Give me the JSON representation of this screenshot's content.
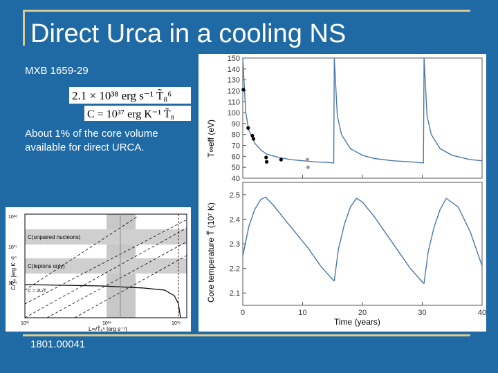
{
  "slide": {
    "title": "Direct Urca in a cooling NS",
    "source_name": "MXB 1659-29",
    "note": "About 1% of the core volume available for direct URCA.",
    "reference": "1801.00041"
  },
  "equations": {
    "luminosity": "2.1 × 10³⁸ erg s⁻¹ T̃₈⁶",
    "heat_capacity": "C = 10³⁷ erg K⁻¹ T̃₈"
  },
  "colors": {
    "background": "#1f6aa5",
    "accent": "#d9c98a",
    "curve": "#4a78a8"
  },
  "right_figure": {
    "top_panel": {
      "ylabel": "T∞eff (eV)",
      "y_ticks": [
        "150",
        "140",
        "130",
        "120",
        "110",
        "100",
        "90",
        "80",
        "70",
        "60",
        "50",
        "40"
      ],
      "ylim": [
        40,
        150
      ]
    },
    "bottom_panel": {
      "ylabel": "Core temperature T̃ (10⁷ K)",
      "y_ticks": [
        "2.5",
        "2.4",
        "2.3",
        "2.2",
        "2.1"
      ],
      "ylim": [
        2.05,
        2.55
      ]
    },
    "xlabel": "Time (years)",
    "x_ticks": [
      "0",
      "10",
      "20",
      "30",
      "40"
    ],
    "xlim": [
      0,
      40
    ]
  },
  "chart_data": [
    {
      "type": "scatter",
      "x": [
        0.1,
        0.9,
        1.6,
        1.8,
        3.9,
        4.0,
        6.4,
        10.8,
        10.9
      ],
      "y": [
        121,
        86,
        79,
        76,
        59,
        55,
        57,
        57,
        50
      ],
      "xlim": [
        0,
        40
      ],
      "ylim": [
        40,
        150
      ],
      "ylabel": "T∞eff (eV)"
    },
    {
      "type": "line",
      "x": [
        0,
        0.5,
        1,
        2,
        3,
        4,
        6,
        8,
        10,
        12,
        14,
        15.2,
        15.3,
        15.8,
        16.5,
        18,
        20,
        22,
        25,
        28,
        30.2,
        30.3,
        30.8,
        31.5,
        33,
        35,
        38,
        40
      ],
      "y": [
        150,
        100,
        84,
        72,
        66,
        62,
        59,
        57,
        56,
        55,
        54.5,
        54,
        150,
        97,
        80,
        67,
        61,
        58,
        56,
        55,
        54,
        150,
        97,
        80,
        67,
        61,
        57,
        56
      ],
      "xlim": [
        0,
        40
      ],
      "ylim": [
        40,
        150
      ]
    },
    {
      "type": "line",
      "x": [
        0,
        1,
        2,
        3,
        3.8,
        5,
        7,
        9,
        11,
        13,
        15.2,
        15.3,
        16,
        17,
        18,
        19,
        20,
        22,
        24,
        26,
        28,
        30.2,
        30.3,
        31,
        32,
        33,
        34,
        36,
        38,
        40
      ],
      "y": [
        2.25,
        2.37,
        2.44,
        2.48,
        2.49,
        2.46,
        2.4,
        2.34,
        2.28,
        2.21,
        2.15,
        2.15,
        2.28,
        2.38,
        2.45,
        2.485,
        2.47,
        2.41,
        2.34,
        2.27,
        2.2,
        2.14,
        2.14,
        2.27,
        2.37,
        2.44,
        2.485,
        2.45,
        2.35,
        2.21
      ],
      "xlim": [
        0,
        40
      ],
      "ylim": [
        2.05,
        2.55
      ],
      "xlabel": "Time (years)",
      "ylabel": "Core temperature T̃ (10⁷ K)"
    }
  ],
  "left_figure": {
    "ylabel": "C/T̃₈ [erg K⁻¹]",
    "xlabel": "L∞/T̃₈⁶ [erg s⁻¹]",
    "y_ticks": [
      "10³⁸",
      "10³⁷",
      "10³⁶"
    ],
    "x_ticks": [
      "10³⁷",
      "10³⁸",
      "10³⁹"
    ],
    "labels": {
      "unpaired": "C(unpaired nucleons)",
      "leptons": "C(leptons only)",
      "c_eq": "C = 2L/T"
    }
  }
}
